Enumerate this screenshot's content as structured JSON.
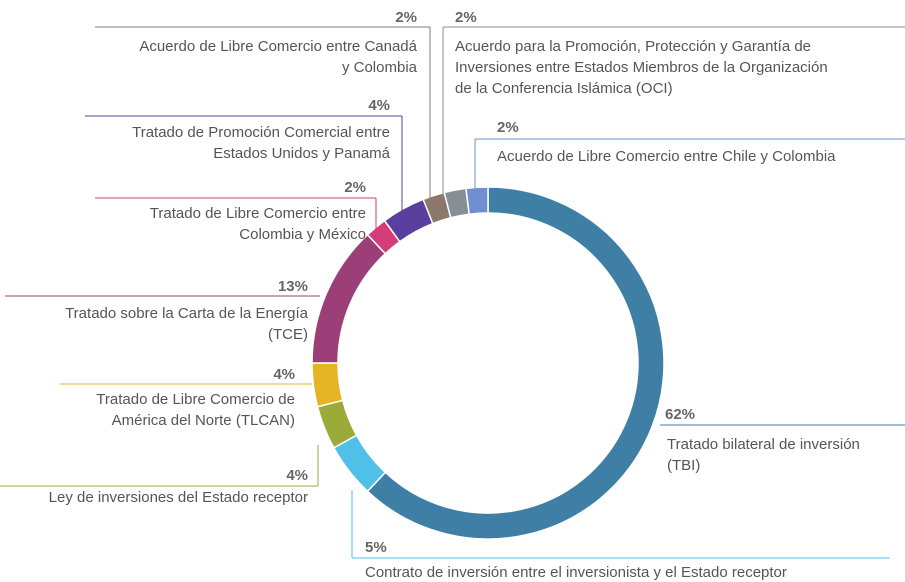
{
  "chart_data": {
    "type": "donut",
    "slices": [
      {
        "label": [
          "Tratado bilateral de inversión",
          "(TBI)"
        ],
        "value": 62,
        "value_label": "62%",
        "color": "#3f7fa6"
      },
      {
        "label": [
          "Contrato de inversión entre el inversionista y el Estado receptor"
        ],
        "value": 5,
        "value_label": "5%",
        "color": "#4fc1e9"
      },
      {
        "label": [
          "Ley de inversiones del Estado receptor"
        ],
        "value": 4,
        "value_label": "4%",
        "color": "#9aab3a"
      },
      {
        "label": [
          "Tratado de Libre Comercio de",
          "América del Norte  (TLCAN)"
        ],
        "value": 4,
        "value_label": "4%",
        "color": "#e5b424"
      },
      {
        "label": [
          "Tratado sobre la Carta de la Energía",
          "(TCE)"
        ],
        "value": 13,
        "value_label": "13%",
        "color": "#9c3f78"
      },
      {
        "label": [
          "Tratado de Libre Comercio entre",
          "Colombia y México"
        ],
        "value": 2,
        "value_label": "2%",
        "color": "#d63c7a"
      },
      {
        "label": [
          "Tratado de Promoción Comercial entre",
          "Estados Unidos y Panamá"
        ],
        "value": 4,
        "value_label": "4%",
        "color": "#5b3f9e"
      },
      {
        "label": [
          "Acuerdo de Libre Comercio entre Canadá",
          "y Colombia"
        ],
        "value": 2,
        "value_label": "2%",
        "color": "#8b776b"
      },
      {
        "label": [
          "Acuerdo para la Promoción, Protección y Garantía de",
          "Inversiones entre Estados Miembros de la Organización",
          "de la Conferencia Islámica (OCI)"
        ],
        "value": 2,
        "value_label": "2%",
        "color": "#868e96"
      },
      {
        "label": [
          "Acuerdo de Libre Comercio entre Chile y Colombia"
        ],
        "value": 2,
        "value_label": "2%",
        "color": "#6f8fcf"
      }
    ]
  }
}
